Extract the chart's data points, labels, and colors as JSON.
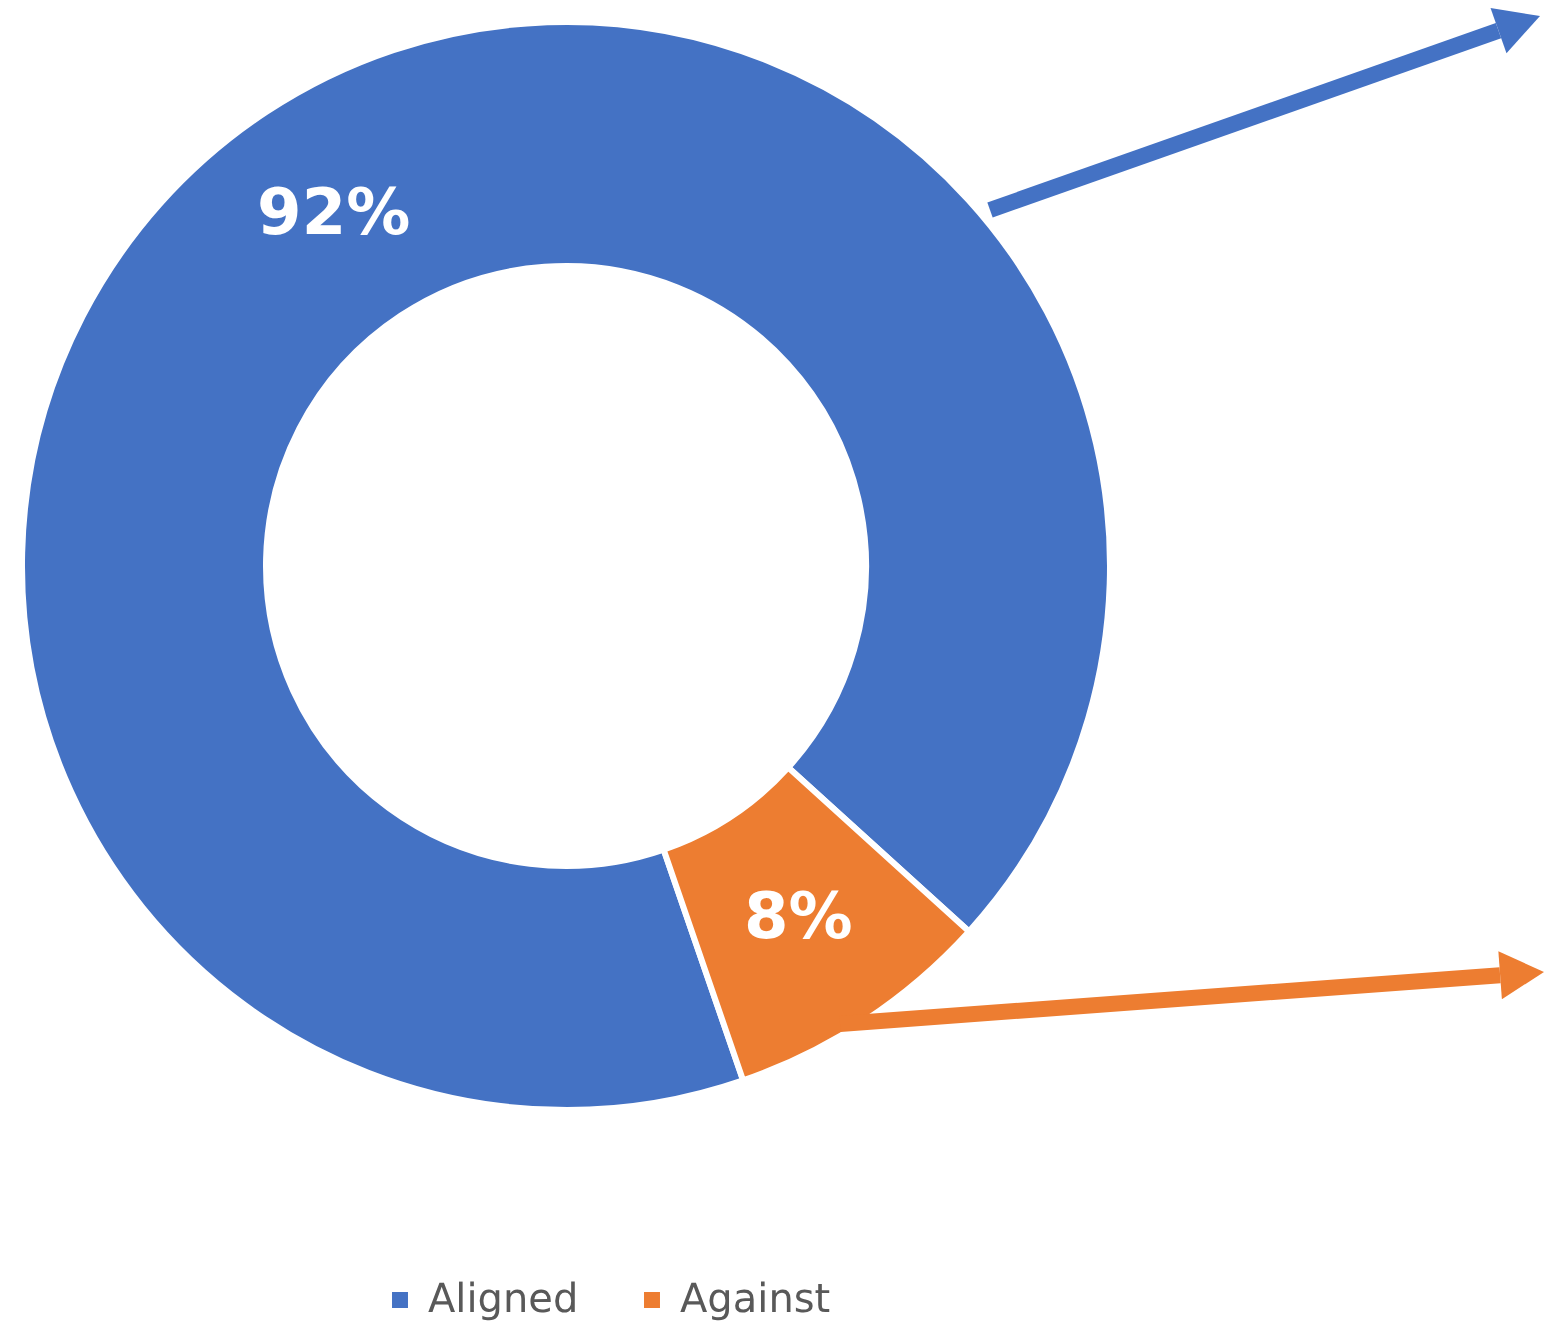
{
  "chart_data": {
    "type": "donut",
    "categories": [
      "Aligned",
      "Against"
    ],
    "values": [
      92,
      8
    ],
    "value_labels": [
      "92%",
      "8%"
    ],
    "colors": [
      "#4472c4",
      "#ed7d31"
    ],
    "legend": "bottom"
  }
}
